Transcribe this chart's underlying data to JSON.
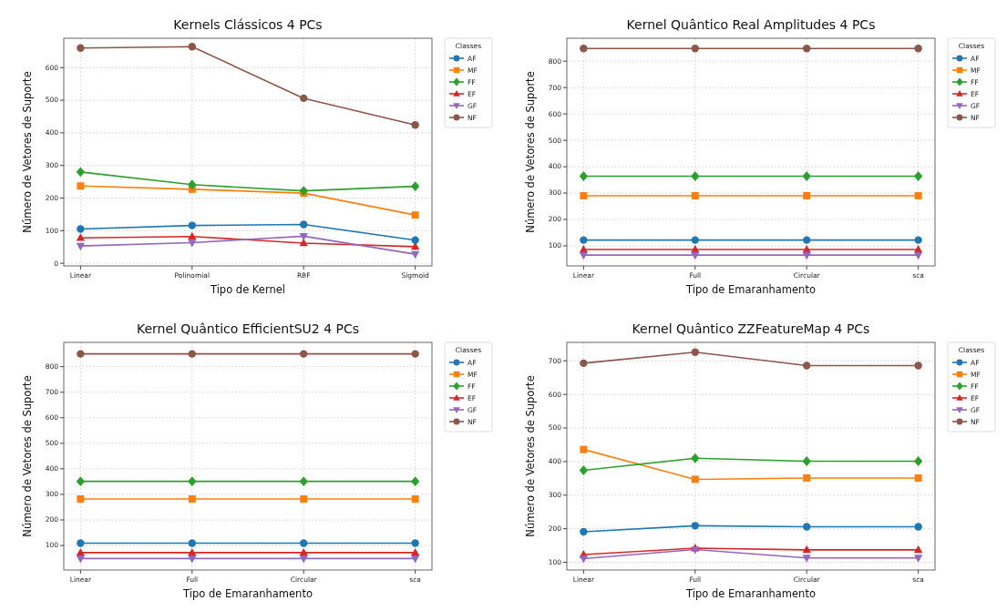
{
  "chart_data": [
    {
      "type": "line",
      "title": "Kernels Clássicos 4 PCs",
      "xlabel": "Tipo de Kernel",
      "ylabel": "Número de Vetores de Suporte",
      "legend_title": "Classes",
      "legend": "right",
      "grid": true,
      "line_style": "solid",
      "categories": [
        "Linear",
        "Polinomial",
        "RBF",
        "Sigmoid"
      ],
      "ylim": [
        -8,
        690
      ],
      "yticks": [
        0,
        100,
        200,
        300,
        400,
        500,
        600
      ],
      "series": [
        {
          "name": "AF",
          "color": "#1f77b4",
          "marker": "circle",
          "values": [
            105,
            116,
            119,
            71
          ]
        },
        {
          "name": "MF",
          "color": "#ff7f0e",
          "marker": "square",
          "values": [
            237,
            227,
            215,
            148
          ]
        },
        {
          "name": "FF",
          "color": "#2ca02c",
          "marker": "diamond",
          "values": [
            280,
            241,
            222,
            236
          ]
        },
        {
          "name": "EF",
          "color": "#d62728",
          "marker": "triangle",
          "values": [
            78,
            82,
            62,
            51
          ]
        },
        {
          "name": "GF",
          "color": "#9467bd",
          "marker": "triangle-down",
          "values": [
            53,
            63,
            83,
            28
          ]
        },
        {
          "name": "NF",
          "color": "#8c564b",
          "marker": "circle",
          "values": [
            660,
            664,
            506,
            424
          ]
        }
      ]
    },
    {
      "type": "line",
      "title": "Kernel Quântico Real Amplitudes 4 PCs",
      "xlabel": "Tipo de Emaranhamento",
      "ylabel": "Número de Vetores de Suporte",
      "legend_title": "Classes",
      "legend": "right",
      "grid": true,
      "line_style": "solid",
      "categories": [
        "Linear",
        "Full",
        "Circular",
        "sca"
      ],
      "ylim": [
        24,
        887
      ],
      "yticks": [
        100,
        200,
        300,
        400,
        500,
        600,
        700,
        800
      ],
      "series": [
        {
          "name": "AF",
          "color": "#1f77b4",
          "marker": "circle",
          "values": [
            122,
            122,
            122,
            122
          ]
        },
        {
          "name": "MF",
          "color": "#ff7f0e",
          "marker": "square",
          "values": [
            290,
            290,
            290,
            290
          ]
        },
        {
          "name": "FF",
          "color": "#2ca02c",
          "marker": "diamond",
          "values": [
            364,
            364,
            364,
            364
          ]
        },
        {
          "name": "EF",
          "color": "#d62728",
          "marker": "triangle",
          "values": [
            86,
            86,
            86,
            86
          ]
        },
        {
          "name": "GF",
          "color": "#9467bd",
          "marker": "triangle-down",
          "values": [
            65,
            65,
            65,
            65
          ]
        },
        {
          "name": "NF",
          "color": "#8c564b",
          "marker": "circle",
          "values": [
            848,
            848,
            848,
            848
          ]
        }
      ]
    },
    {
      "type": "line",
      "title": "Kernel Quântico EfficientSU2 4 PCs",
      "xlabel": "Tipo de Emaranhamento",
      "ylabel": "Número de Vetores de Suporte",
      "legend_title": "Classes",
      "legend": "right",
      "grid": true,
      "line_style": "solid",
      "categories": [
        "Linear",
        "Full",
        "Circular",
        "sca"
      ],
      "ylim": [
        4,
        895
      ],
      "yticks": [
        100,
        200,
        300,
        400,
        500,
        600,
        700,
        800
      ],
      "series": [
        {
          "name": "AF",
          "color": "#1f77b4",
          "marker": "circle",
          "values": [
            109,
            109,
            109,
            109
          ]
        },
        {
          "name": "MF",
          "color": "#ff7f0e",
          "marker": "square",
          "values": [
            282,
            282,
            282,
            282
          ]
        },
        {
          "name": "FF",
          "color": "#2ca02c",
          "marker": "diamond",
          "values": [
            351,
            351,
            351,
            351
          ]
        },
        {
          "name": "EF",
          "color": "#d62728",
          "marker": "triangle",
          "values": [
            72,
            72,
            72,
            72
          ]
        },
        {
          "name": "GF",
          "color": "#9467bd",
          "marker": "triangle-down",
          "values": [
            49,
            49,
            49,
            49
          ]
        },
        {
          "name": "NF",
          "color": "#8c564b",
          "marker": "circle",
          "values": [
            850,
            850,
            850,
            850
          ]
        }
      ]
    },
    {
      "type": "line",
      "title": "Kernel Quântico ZZFeatureMap 4 PCs",
      "xlabel": "Tipo de Emaranhamento",
      "ylabel": "Número de Vetores de Suporte",
      "legend_title": "Classes",
      "legend": "right",
      "grid": true,
      "line_style": "solid",
      "categories": [
        "Linear",
        "Full",
        "Circular",
        "sca"
      ],
      "ylim": [
        77,
        755
      ],
      "yticks": [
        100,
        200,
        300,
        400,
        500,
        600,
        700
      ],
      "series": [
        {
          "name": "AF",
          "color": "#1f77b4",
          "marker": "circle",
          "values": [
            191,
            209,
            206,
            206
          ]
        },
        {
          "name": "MF",
          "color": "#ff7f0e",
          "marker": "square",
          "values": [
            436,
            347,
            351,
            351
          ]
        },
        {
          "name": "FF",
          "color": "#2ca02c",
          "marker": "diamond",
          "values": [
            374,
            410,
            401,
            401
          ]
        },
        {
          "name": "EF",
          "color": "#d62728",
          "marker": "triangle",
          "values": [
            123,
            142,
            137,
            137
          ]
        },
        {
          "name": "GF",
          "color": "#9467bd",
          "marker": "triangle-down",
          "values": [
            111,
            138,
            113,
            113
          ]
        },
        {
          "name": "NF",
          "color": "#8c564b",
          "marker": "circle",
          "values": [
            693,
            726,
            686,
            686
          ]
        }
      ]
    }
  ]
}
